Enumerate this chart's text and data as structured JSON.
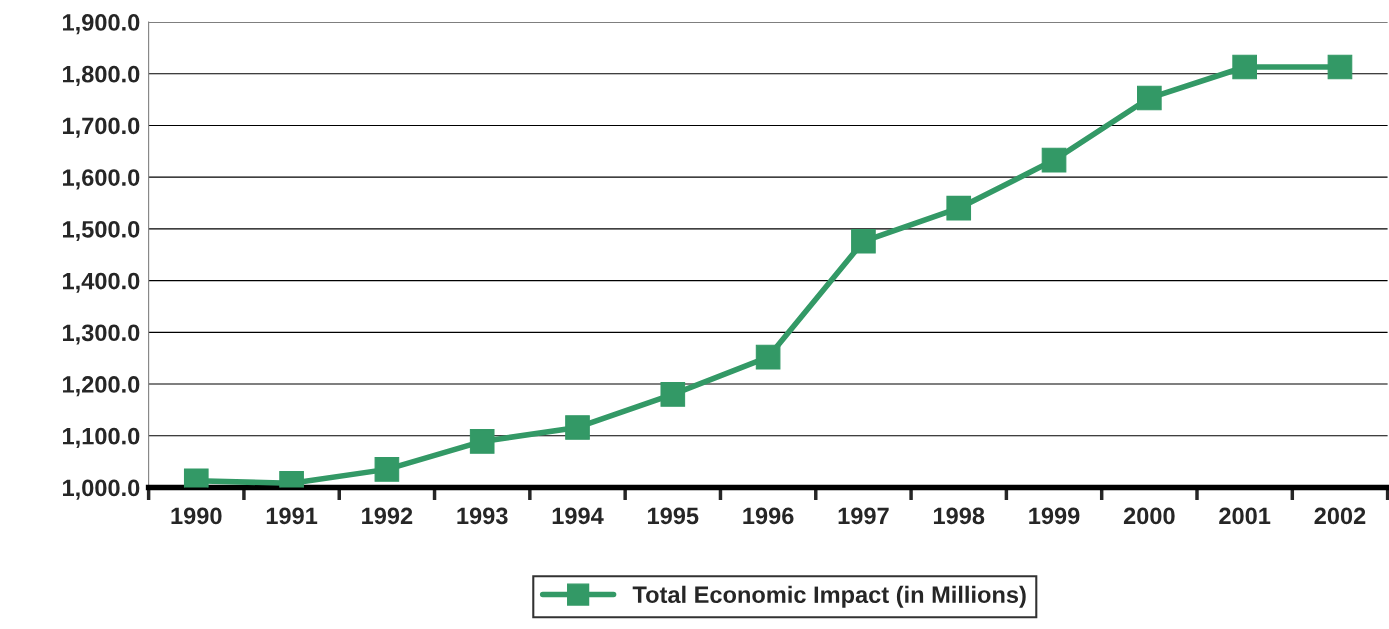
{
  "chart_data": {
    "type": "line",
    "categories": [
      "1990",
      "1991",
      "1992",
      "1993",
      "1994",
      "1995",
      "1996",
      "1997",
      "1998",
      "1999",
      "2000",
      "2001",
      "2002"
    ],
    "series": [
      {
        "name": "Total Economic Impact (in Millions)",
        "color": "#339966",
        "values": [
          1013,
          1008,
          1035,
          1089,
          1116,
          1180,
          1252,
          1476,
          1540,
          1633,
          1753,
          1813,
          1813
        ]
      }
    ],
    "ylim": [
      1000,
      1900
    ],
    "yticks": [
      {
        "value": 1000,
        "label": "1,000.0"
      },
      {
        "value": 1100,
        "label": "1,100.0"
      },
      {
        "value": 1200,
        "label": "1,200.0"
      },
      {
        "value": 1300,
        "label": "1,300.0"
      },
      {
        "value": 1400,
        "label": "1,400.0"
      },
      {
        "value": 1500,
        "label": "1,500.0"
      },
      {
        "value": 1600,
        "label": "1,600.0"
      },
      {
        "value": 1700,
        "label": "1,700.0"
      },
      {
        "value": 1800,
        "label": "1,800.0"
      },
      {
        "value": 1900,
        "label": "1,900.0"
      }
    ],
    "grid": "y",
    "legend": "bottom",
    "marker": "square",
    "line_style": "solid"
  }
}
